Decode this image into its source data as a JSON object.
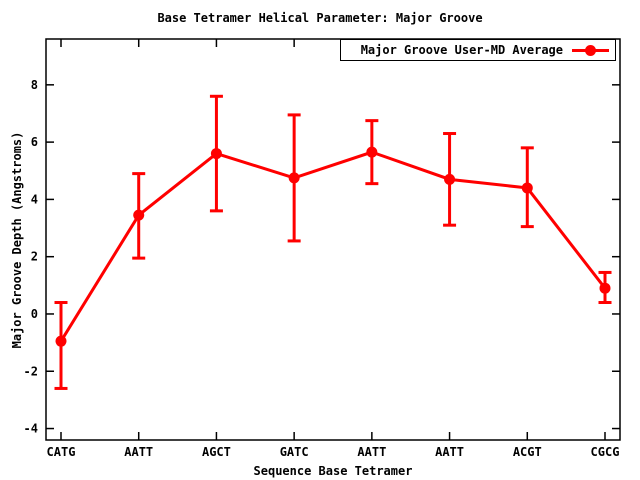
{
  "window": {
    "background": "#ffffff",
    "foreground": "#000000"
  },
  "chart_data": {
    "type": "line",
    "title": "Base Tetramer Helical Parameter: Major Groove",
    "xlabel": "Sequence Base Tetramer",
    "ylabel": "Major Groove Depth (Angstroms)",
    "legend_position": "top-right-inside-box",
    "grid": false,
    "categories": [
      "CATG",
      "AATT",
      "AGCT",
      "GATC",
      "AATT",
      "AATT",
      "ACGT",
      "CGCG"
    ],
    "series": [
      {
        "name": "Major Groove User-MD Average",
        "color": "#ff0000",
        "marker": "filled-circle",
        "values": [
          -0.95,
          3.45,
          5.6,
          4.75,
          5.65,
          4.7,
          4.4,
          0.9
        ],
        "err_low": [
          -2.6,
          1.95,
          3.6,
          2.55,
          4.55,
          3.1,
          3.05,
          0.4
        ],
        "err_high": [
          0.4,
          4.9,
          7.6,
          6.95,
          6.75,
          6.3,
          5.8,
          1.45
        ]
      }
    ],
    "yticks": [
      -4,
      -2,
      0,
      2,
      4,
      6,
      8
    ],
    "ylim": [
      -4.4,
      9.6
    ],
    "axis_color": "#000000"
  }
}
